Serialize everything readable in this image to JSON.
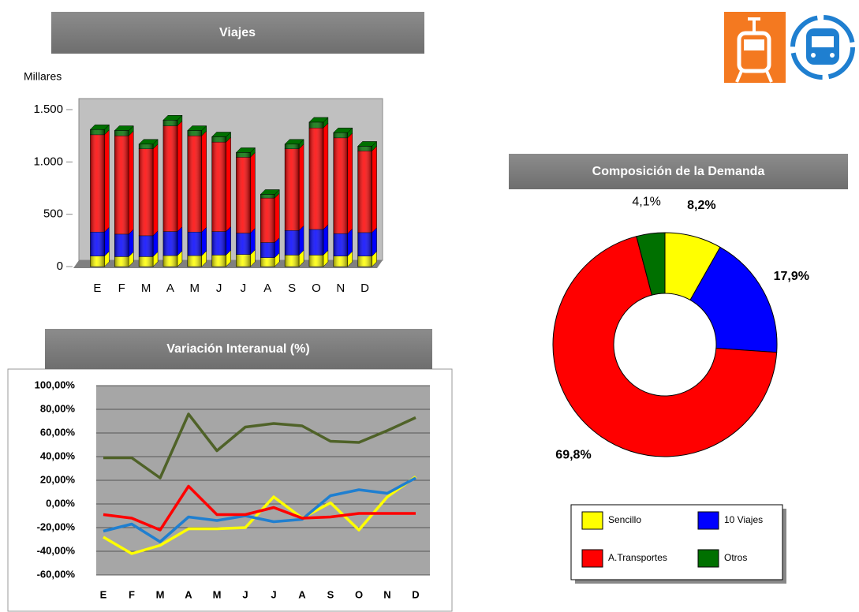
{
  "chart_data": [
    {
      "type": "bar",
      "stacked": true,
      "title": "Viajes",
      "y_label": "Millares",
      "categories": [
        "E",
        "F",
        "M",
        "A",
        "M",
        "J",
        "J",
        "A",
        "S",
        "O",
        "N",
        "D"
      ],
      "series": [
        {
          "name": "Sencillo",
          "color": "#ffff00",
          "values": [
            100,
            95,
            95,
            105,
            105,
            110,
            115,
            85,
            110,
            110,
            100,
            100
          ]
        },
        {
          "name": "10 Viajes",
          "color": "#0000ff",
          "values": [
            230,
            215,
            200,
            230,
            225,
            225,
            205,
            145,
            235,
            245,
            215,
            225
          ]
        },
        {
          "name": "A.Transportes",
          "color": "#ff0000",
          "values": [
            930,
            940,
            830,
            1010,
            920,
            855,
            725,
            425,
            780,
            970,
            915,
            780
          ]
        },
        {
          "name": "Otros",
          "color": "#007000",
          "values": [
            50,
            50,
            45,
            55,
            50,
            50,
            45,
            35,
            45,
            55,
            50,
            45
          ]
        }
      ],
      "ylim": [
        0,
        1500
      ],
      "yticks": [
        0,
        500,
        {
          "value": 1000,
          "label": "1.000"
        },
        {
          "value": 1500,
          "label": "1.500"
        }
      ]
    },
    {
      "type": "donut",
      "title": "Composición de la Demanda",
      "categories": [
        "Sencillo",
        "10 Viajes",
        "A.Transportes",
        "Otros"
      ],
      "colors": [
        "#ffff00",
        "#0000ff",
        "#ff0000",
        "#007000"
      ],
      "values": [
        8.2,
        17.9,
        69.8,
        4.1
      ],
      "value_labels": [
        "8,2%",
        "17,9%",
        "69,8%",
        "4,1%"
      ]
    },
    {
      "type": "line",
      "title": "Variación Interanual (%)",
      "categories": [
        "E",
        "F",
        "M",
        "A",
        "M",
        "J",
        "J",
        "A",
        "S",
        "O",
        "N",
        "D"
      ],
      "series": [
        {
          "color": "#ffff00",
          "values": [
            -28,
            -42,
            -35,
            -21,
            -21,
            -20,
            6,
            -12,
            1,
            -22,
            6,
            23
          ]
        },
        {
          "color": "#1f7fd0",
          "values": [
            -23,
            -17,
            -32,
            -11,
            -14,
            -10,
            -15,
            -13,
            7,
            12,
            9,
            22
          ]
        },
        {
          "color": "#ff0000",
          "values": [
            -9,
            -12,
            -22,
            15,
            -9,
            -9,
            -3,
            -12,
            -11,
            -8,
            -8,
            -8
          ]
        },
        {
          "color": "#4f6228",
          "values": [
            39,
            39,
            22,
            76,
            45,
            65,
            68,
            66,
            53,
            52,
            62,
            73
          ]
        }
      ],
      "ylim": [
        -60,
        100
      ],
      "grid": true,
      "yticks": [
        {
          "value": -60,
          "label": "-60,00%"
        },
        {
          "value": -40,
          "label": "-40,00%"
        },
        {
          "value": -20,
          "label": "-20,00%"
        },
        {
          "value": 0,
          "label": "0,00%"
        },
        {
          "value": 20,
          "label": "20,00%"
        },
        {
          "value": 40,
          "label": "40,00%"
        },
        {
          "value": 60,
          "label": "60,00%"
        },
        {
          "value": 80,
          "label": "80,00%"
        },
        {
          "value": 100,
          "label": "100,00%"
        }
      ]
    }
  ]
}
